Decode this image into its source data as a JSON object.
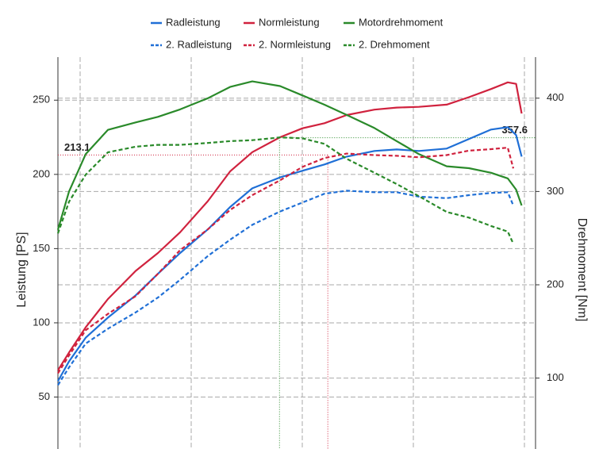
{
  "chart_data": {
    "type": "line",
    "y_label": "Leistung [PS]",
    "y2_label": "Drehmoment [Nm]",
    "xlim": [
      -4,
      82
    ],
    "xgrid": [
      0,
      20,
      40,
      60,
      80
    ],
    "ylim": [
      15,
      279
    ],
    "yticks": [
      50,
      100,
      150,
      200,
      250
    ],
    "y2lim": [
      24,
      444
    ],
    "y2ticks": [
      100,
      200,
      300,
      400
    ],
    "grid": true,
    "series": [
      {
        "name": "Radleistung",
        "color": "#1f6fd6",
        "dashed": false,
        "x": [
          -4,
          -2,
          1,
          5,
          10,
          14,
          18,
          23,
          27,
          31,
          36,
          40,
          44,
          48,
          53,
          57,
          61,
          66,
          70,
          74,
          77,
          78.5,
          79.5
        ],
        "values": [
          60.7,
          74,
          90,
          103.5,
          118.5,
          133,
          147,
          163,
          178,
          190.6,
          198,
          202.4,
          206.7,
          212,
          215.8,
          216.8,
          215.8,
          217.4,
          223.8,
          230.2,
          231.8,
          226.5,
          212
        ]
      },
      {
        "name": "Normleistung",
        "color": "#d0223e",
        "dashed": false,
        "x": [
          -4,
          -2,
          1,
          5,
          10,
          14,
          18,
          23,
          27,
          31,
          36,
          40,
          44,
          48,
          53,
          57,
          61,
          66,
          70,
          74,
          77,
          78.5,
          79.5
        ],
        "values": [
          68,
          80,
          97,
          116,
          135,
          147,
          161,
          182,
          202,
          215,
          225,
          231,
          234.5,
          240,
          243.6,
          245,
          245.5,
          247,
          252,
          257.5,
          262,
          261,
          241
        ]
      },
      {
        "name": "Motordrehmoment",
        "color": "#2a8a2a",
        "dashed": false,
        "axis": "y2",
        "x": [
          -4,
          -2,
          1,
          5,
          10,
          14,
          18,
          23,
          27,
          31,
          36,
          40,
          44,
          48,
          53,
          57,
          61,
          66,
          70,
          74,
          77,
          78.5,
          79.5
        ],
        "values": [
          259,
          300,
          340,
          366,
          374,
          380,
          388,
          400,
          412,
          418,
          413,
          403,
          393,
          382,
          368,
          354,
          340,
          327,
          325,
          320,
          314,
          302,
          285
        ]
      },
      {
        "name": "2. Radleistung",
        "color": "#1f6fd6",
        "dashed": true,
        "x": [
          -4,
          -2,
          1,
          5,
          10,
          14,
          18,
          23,
          27,
          31,
          36,
          40,
          44,
          48,
          53,
          57,
          61,
          66,
          70,
          74,
          77,
          78
        ],
        "values": [
          58,
          70,
          86,
          96,
          107,
          117,
          129,
          145,
          156,
          166,
          175,
          181,
          187,
          189,
          188,
          188,
          185,
          184,
          186,
          187.5,
          188,
          179
        ]
      },
      {
        "name": "2. Normleistung",
        "color": "#d0223e",
        "dashed": true,
        "x": [
          -4,
          -2,
          1,
          5,
          10,
          14,
          18,
          23,
          27,
          31,
          36,
          40,
          44,
          48,
          53,
          57,
          61,
          66,
          70,
          74,
          77,
          78
        ],
        "values": [
          66,
          78,
          95,
          106,
          118,
          133,
          149,
          163,
          176,
          186,
          196,
          205,
          211,
          214,
          213,
          212.5,
          211.5,
          213,
          216,
          217,
          218,
          204
        ]
      },
      {
        "name": "2. Drehmoment",
        "color": "#2a8a2a",
        "dashed": true,
        "axis": "y2",
        "x": [
          -4,
          -2,
          1,
          5,
          10,
          14,
          18,
          23,
          27,
          31,
          36,
          40,
          44,
          48,
          53,
          57,
          61,
          66,
          70,
          74,
          77,
          78
        ],
        "values": [
          255,
          289,
          318,
          342,
          348,
          350,
          350,
          352,
          354,
          355,
          358,
          357,
          351,
          335,
          320,
          308,
          295,
          278,
          272,
          263,
          257,
          244
        ]
      }
    ],
    "annotations": [
      {
        "value": 213.1,
        "x": 44.6,
        "color": "#d0223e",
        "side": "left"
      },
      {
        "value": 357.6,
        "x": 35.9,
        "color": "#2a8a2a",
        "side": "right",
        "axis": "y2"
      }
    ]
  }
}
